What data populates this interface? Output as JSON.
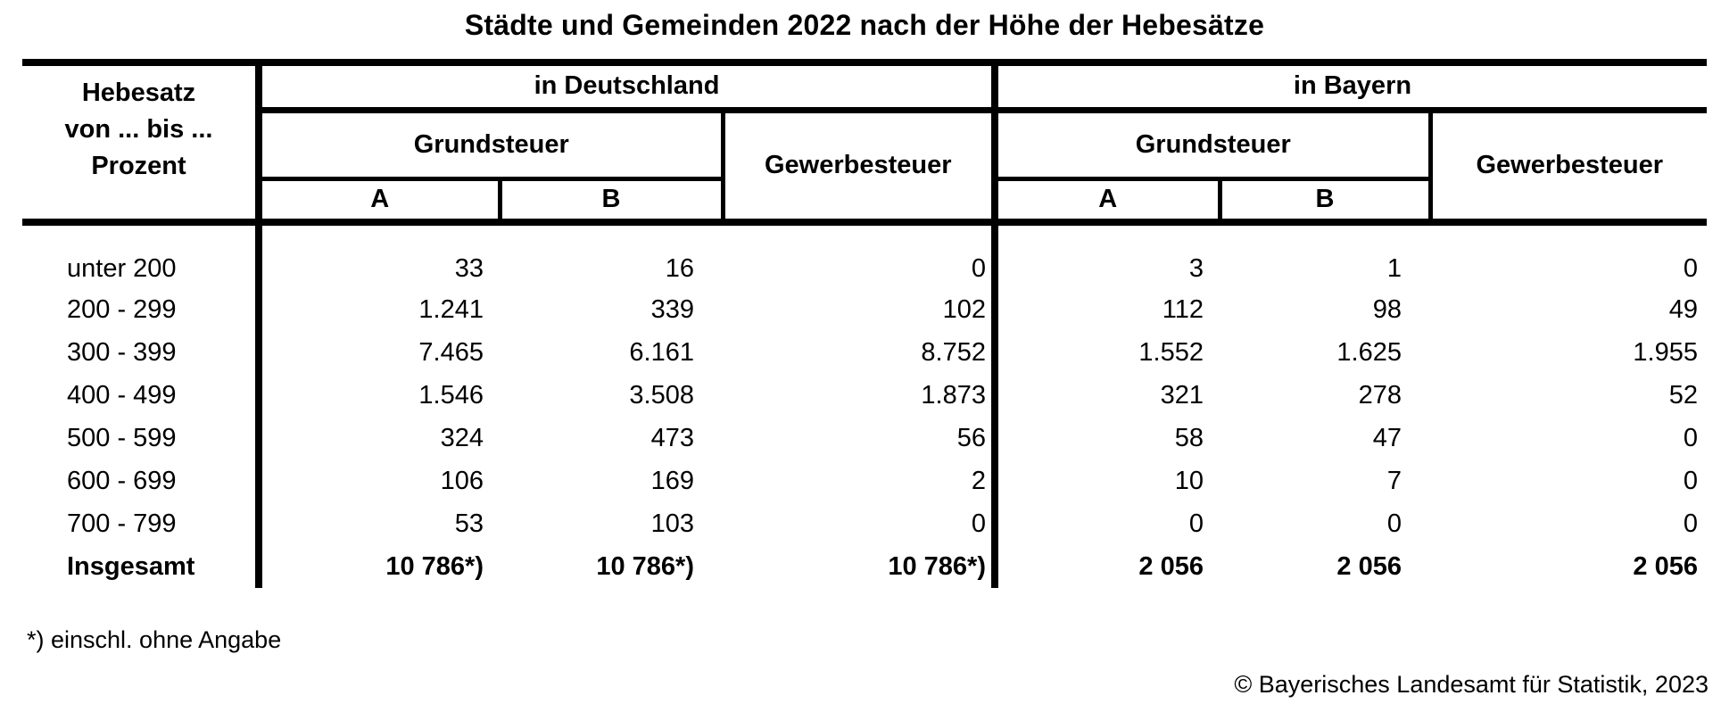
{
  "title": "Städte und Gemeinden 2022 nach der Höhe der Hebesätze",
  "table": {
    "row_header": "Hebesatz\nvon ... bis ...\nProzent",
    "sections": {
      "deutschland": "in Deutschland",
      "bayern": "in Bayern"
    },
    "grundsteuer_label": "Grundsteuer",
    "gewerbesteuer_label": "Gewerbesteuer",
    "col_a": "A",
    "col_b": "B",
    "rows": [
      {
        "label": "unter 200",
        "values": [
          "33",
          "16",
          "0",
          "3",
          "1",
          "0"
        ]
      },
      {
        "label": "200 - 299",
        "values": [
          "1.241",
          "339",
          "102",
          "112",
          "98",
          "49"
        ]
      },
      {
        "label": "300 - 399",
        "values": [
          "7.465",
          "6.161",
          "8.752",
          "1.552",
          "1.625",
          "1.955"
        ]
      },
      {
        "label": "400 - 499",
        "values": [
          "1.546",
          "3.508",
          "1.873",
          "321",
          "278",
          "52"
        ]
      },
      {
        "label": "500 - 599",
        "values": [
          "324",
          "473",
          "56",
          "58",
          "47",
          "0"
        ]
      },
      {
        "label": "600 - 699",
        "values": [
          "106",
          "169",
          "2",
          "10",
          "7",
          "0"
        ]
      },
      {
        "label": "700 - 799",
        "values": [
          "53",
          "103",
          "0",
          "0",
          "0",
          "0"
        ]
      },
      {
        "label": "Insgesamt",
        "emphasis": true,
        "values": [
          "10 786*)",
          "10 786*)",
          "10 786*)",
          "2 056",
          "2 056",
          "2 056"
        ]
      }
    ]
  },
  "footnote": "*) einschl. ohne Angabe",
  "copyright": "© Bayerisches Landesamt für Statistik, 2023",
  "colors": {
    "line": "#000000",
    "background": "#ffffff",
    "text": "#000000"
  }
}
